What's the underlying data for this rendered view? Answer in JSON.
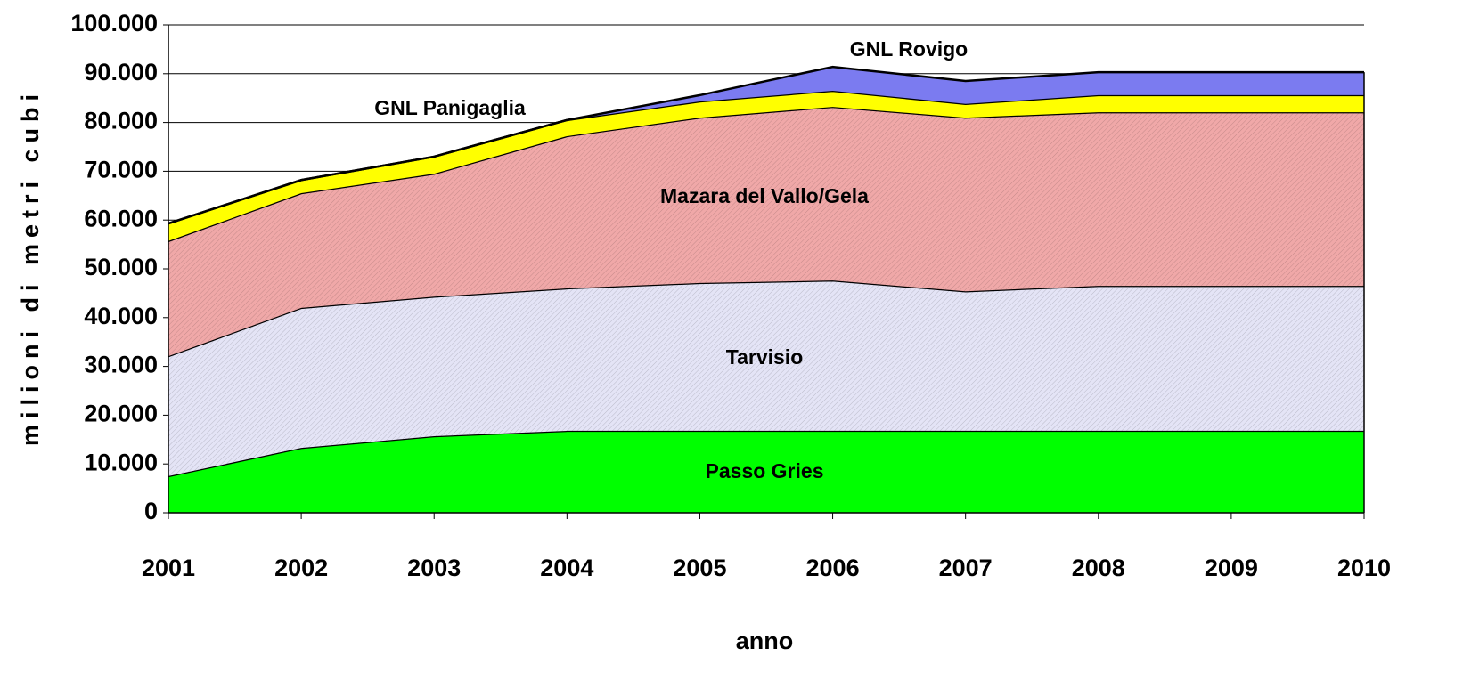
{
  "chart_data": {
    "type": "stacked-area",
    "x_label": "anno",
    "y_label": "milioni di metri cubi",
    "categories": [
      "2001",
      "2002",
      "2003",
      "2004",
      "2005",
      "2006",
      "2007",
      "2008",
      "2009",
      "2010"
    ],
    "series": [
      {
        "name": "Passo Gries",
        "color": "#00ff00",
        "values": [
          7500,
          13300,
          15700,
          16800,
          16800,
          16800,
          16800,
          16800,
          16800,
          16800
        ]
      },
      {
        "name": "Tarvisio",
        "color": "#e4e4f6",
        "values": [
          24600,
          28700,
          28600,
          29200,
          30300,
          30800,
          28600,
          29700,
          29700,
          29700
        ]
      },
      {
        "name": "Mazara del Vallo/Gela",
        "color": "#f0a8a8",
        "values": [
          23600,
          23500,
          25200,
          31200,
          33900,
          35600,
          35600,
          35600,
          35600,
          35600
        ]
      },
      {
        "name": "GNL Panigaglia",
        "color": "#ffff00",
        "values": [
          3600,
          2700,
          3500,
          3300,
          3300,
          3300,
          2800,
          3500,
          3500,
          3500
        ]
      },
      {
        "name": "GNL Rovigo",
        "color": "#7b7bf0",
        "values": [
          0,
          0,
          0,
          0,
          1300,
          4900,
          4700,
          4700,
          4700,
          4700
        ]
      }
    ],
    "ylim": [
      0,
      100000
    ],
    "yticks": [
      0,
      {
        "value": 10000,
        "label": "10.000"
      },
      {
        "value": 20000,
        "label": "20.000"
      },
      {
        "value": 30000,
        "label": "30.000"
      },
      {
        "value": 40000,
        "label": "40.000"
      },
      {
        "value": 50000,
        "label": "50.000"
      },
      {
        "value": 60000,
        "label": "60.000"
      },
      {
        "value": 70000,
        "label": "70.000"
      },
      {
        "value": 80000,
        "label": "80.000"
      },
      {
        "value": 90000,
        "label": "90.000"
      },
      {
        "value": 100000,
        "label": "100.000"
      }
    ],
    "grid": true
  }
}
